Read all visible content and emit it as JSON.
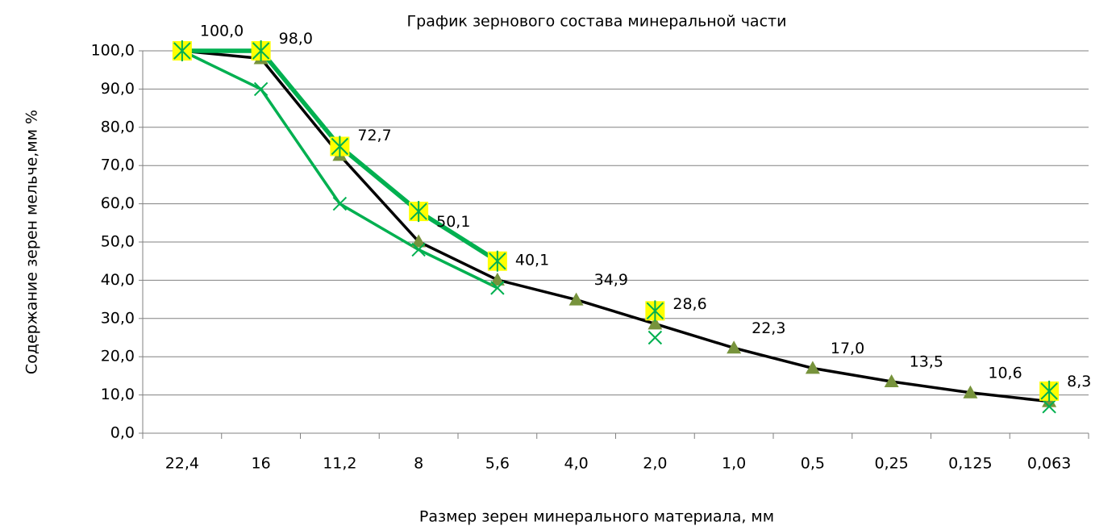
{
  "chart_data": {
    "type": "line",
    "title": "График зернового состава минеральной части",
    "x_label": "Размер зерен минерального материала, мм",
    "y_label": "Содержание зерен мельче,мм %",
    "categories": [
      "22,4",
      "16",
      "11,2",
      "8",
      "5,6",
      "4,0",
      "2,0",
      "1,0",
      "0,5",
      "0,25",
      "0,125",
      "0,063"
    ],
    "ylim": [
      0,
      100
    ],
    "yticks": [
      {
        "value": 0,
        "label": "0,0"
      },
      {
        "value": 10,
        "label": "10,0"
      },
      {
        "value": 20,
        "label": "20,0"
      },
      {
        "value": 30,
        "label": "30,0"
      },
      {
        "value": 40,
        "label": "40,0"
      },
      {
        "value": 50,
        "label": "50,0"
      },
      {
        "value": 60,
        "label": "60,0"
      },
      {
        "value": 70,
        "label": "70,0"
      },
      {
        "value": 80,
        "label": "80,0"
      },
      {
        "value": 90,
        "label": "90,0"
      },
      {
        "value": 100,
        "label": "100,0"
      }
    ],
    "grid": true,
    "series": [
      {
        "color": "#000000",
        "marker": "triangle",
        "marker_color": "#77933c",
        "values": [
          100,
          98,
          72.7,
          50.1,
          40.1,
          34.9,
          28.6,
          22.3,
          17.0,
          13.5,
          10.6,
          8.3
        ],
        "value_labels": [
          "100,0",
          "98,0",
          "72,7",
          "50,1",
          "40,1",
          "34,9",
          "28,6",
          "22,3",
          "17,0",
          "13,5",
          "10,6",
          "8,3"
        ]
      },
      {
        "color": "#00b050",
        "marker": "x",
        "marker_color": "#00b050",
        "values": [
          100,
          90,
          60,
          48,
          38,
          null,
          25,
          null,
          null,
          null,
          null,
          7
        ]
      },
      {
        "color": "#00b050",
        "marker": "square-star",
        "marker_color": "#ffff00",
        "values": [
          100,
          100,
          75,
          58,
          45,
          null,
          32,
          null,
          null,
          null,
          null,
          11
        ]
      }
    ]
  }
}
